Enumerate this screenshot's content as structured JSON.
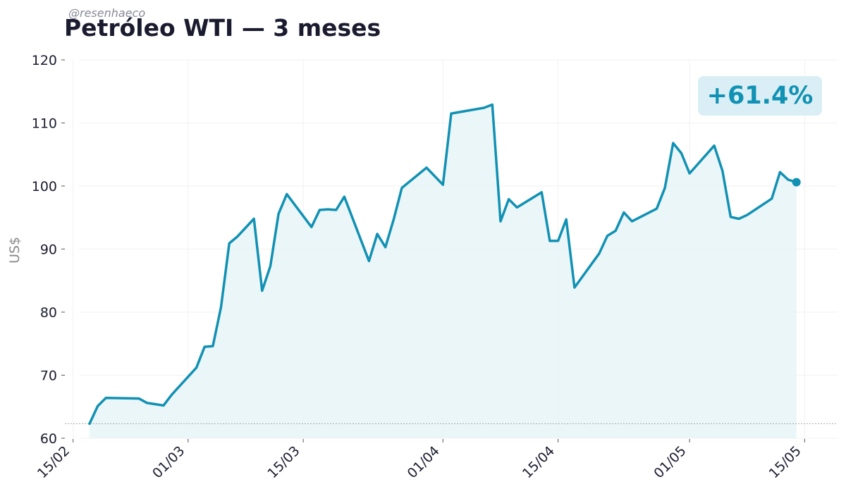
{
  "watermark": "@resenhaeco",
  "title": "Petróleo WTI — 3 meses",
  "ylabel": "US$",
  "badge": "+61.4%",
  "colors": {
    "line": "#1191b3",
    "fill": "#e6f4f7",
    "title": "#1b1b2f",
    "baseline": "#aaaaaa"
  },
  "chart_data": {
    "type": "area",
    "title": "Petróleo WTI — 3 meses",
    "ylabel": "US$",
    "ylim": [
      60,
      120
    ],
    "yticks": [
      60,
      70,
      80,
      90,
      100,
      110,
      120
    ],
    "xlim": [
      "2026-02-14",
      "2026-05-19"
    ],
    "xticks": [
      {
        "date": "2026-02-15",
        "label": "15/02"
      },
      {
        "date": "2026-03-01",
        "label": "01/03"
      },
      {
        "date": "2026-03-15",
        "label": "15/03"
      },
      {
        "date": "2026-04-01",
        "label": "01/04"
      },
      {
        "date": "2026-04-15",
        "label": "15/04"
      },
      {
        "date": "2026-05-01",
        "label": "01/05"
      },
      {
        "date": "2026-05-15",
        "label": "15/05"
      }
    ],
    "baseline": 62.3,
    "grid": true,
    "annotation": "+61.4%",
    "series": [
      {
        "x": [
          "2026-02-17",
          "2026-02-18",
          "2026-02-19",
          "2026-02-23",
          "2026-02-24",
          "2026-02-26",
          "2026-02-27",
          "2026-03-02",
          "2026-03-03",
          "2026-03-04",
          "2026-03-05",
          "2026-03-06",
          "2026-03-07",
          "2026-03-09",
          "2026-03-10",
          "2026-03-11",
          "2026-03-12",
          "2026-03-13",
          "2026-03-16",
          "2026-03-17",
          "2026-03-18",
          "2026-03-19",
          "2026-03-20",
          "2026-03-23",
          "2026-03-24",
          "2026-03-25",
          "2026-03-26",
          "2026-03-27",
          "2026-03-30",
          "2026-04-01",
          "2026-04-02",
          "2026-04-06",
          "2026-04-07",
          "2026-04-08",
          "2026-04-09",
          "2026-04-10",
          "2026-04-13",
          "2026-04-14",
          "2026-04-15",
          "2026-04-16",
          "2026-04-17",
          "2026-04-20",
          "2026-04-21",
          "2026-04-22",
          "2026-04-23",
          "2026-04-24",
          "2026-04-27",
          "2026-04-28",
          "2026-04-29",
          "2026-04-30",
          "2026-05-01",
          "2026-05-04",
          "2026-05-05",
          "2026-05-06",
          "2026-05-07",
          "2026-05-08",
          "2026-05-11",
          "2026-05-12",
          "2026-05-13",
          "2026-05-14"
        ],
        "values": [
          62.3,
          65.1,
          66.4,
          66.3,
          65.6,
          65.2,
          66.9,
          71.2,
          74.5,
          74.6,
          80.8,
          90.9,
          92.0,
          94.8,
          83.4,
          87.3,
          95.6,
          98.7,
          93.5,
          96.2,
          96.3,
          96.2,
          98.3,
          88.1,
          92.4,
          90.3,
          94.7,
          99.7,
          102.9,
          100.2,
          111.5,
          112.4,
          112.9,
          94.4,
          97.9,
          96.6,
          99.0,
          91.3,
          91.3,
          94.7,
          83.9,
          89.3,
          92.1,
          92.9,
          95.8,
          94.4,
          96.4,
          99.7,
          106.8,
          105.2,
          102.0,
          106.4,
          102.4,
          95.1,
          94.8,
          95.4,
          98.0,
          102.2,
          101.0,
          100.6
        ]
      }
    ]
  }
}
